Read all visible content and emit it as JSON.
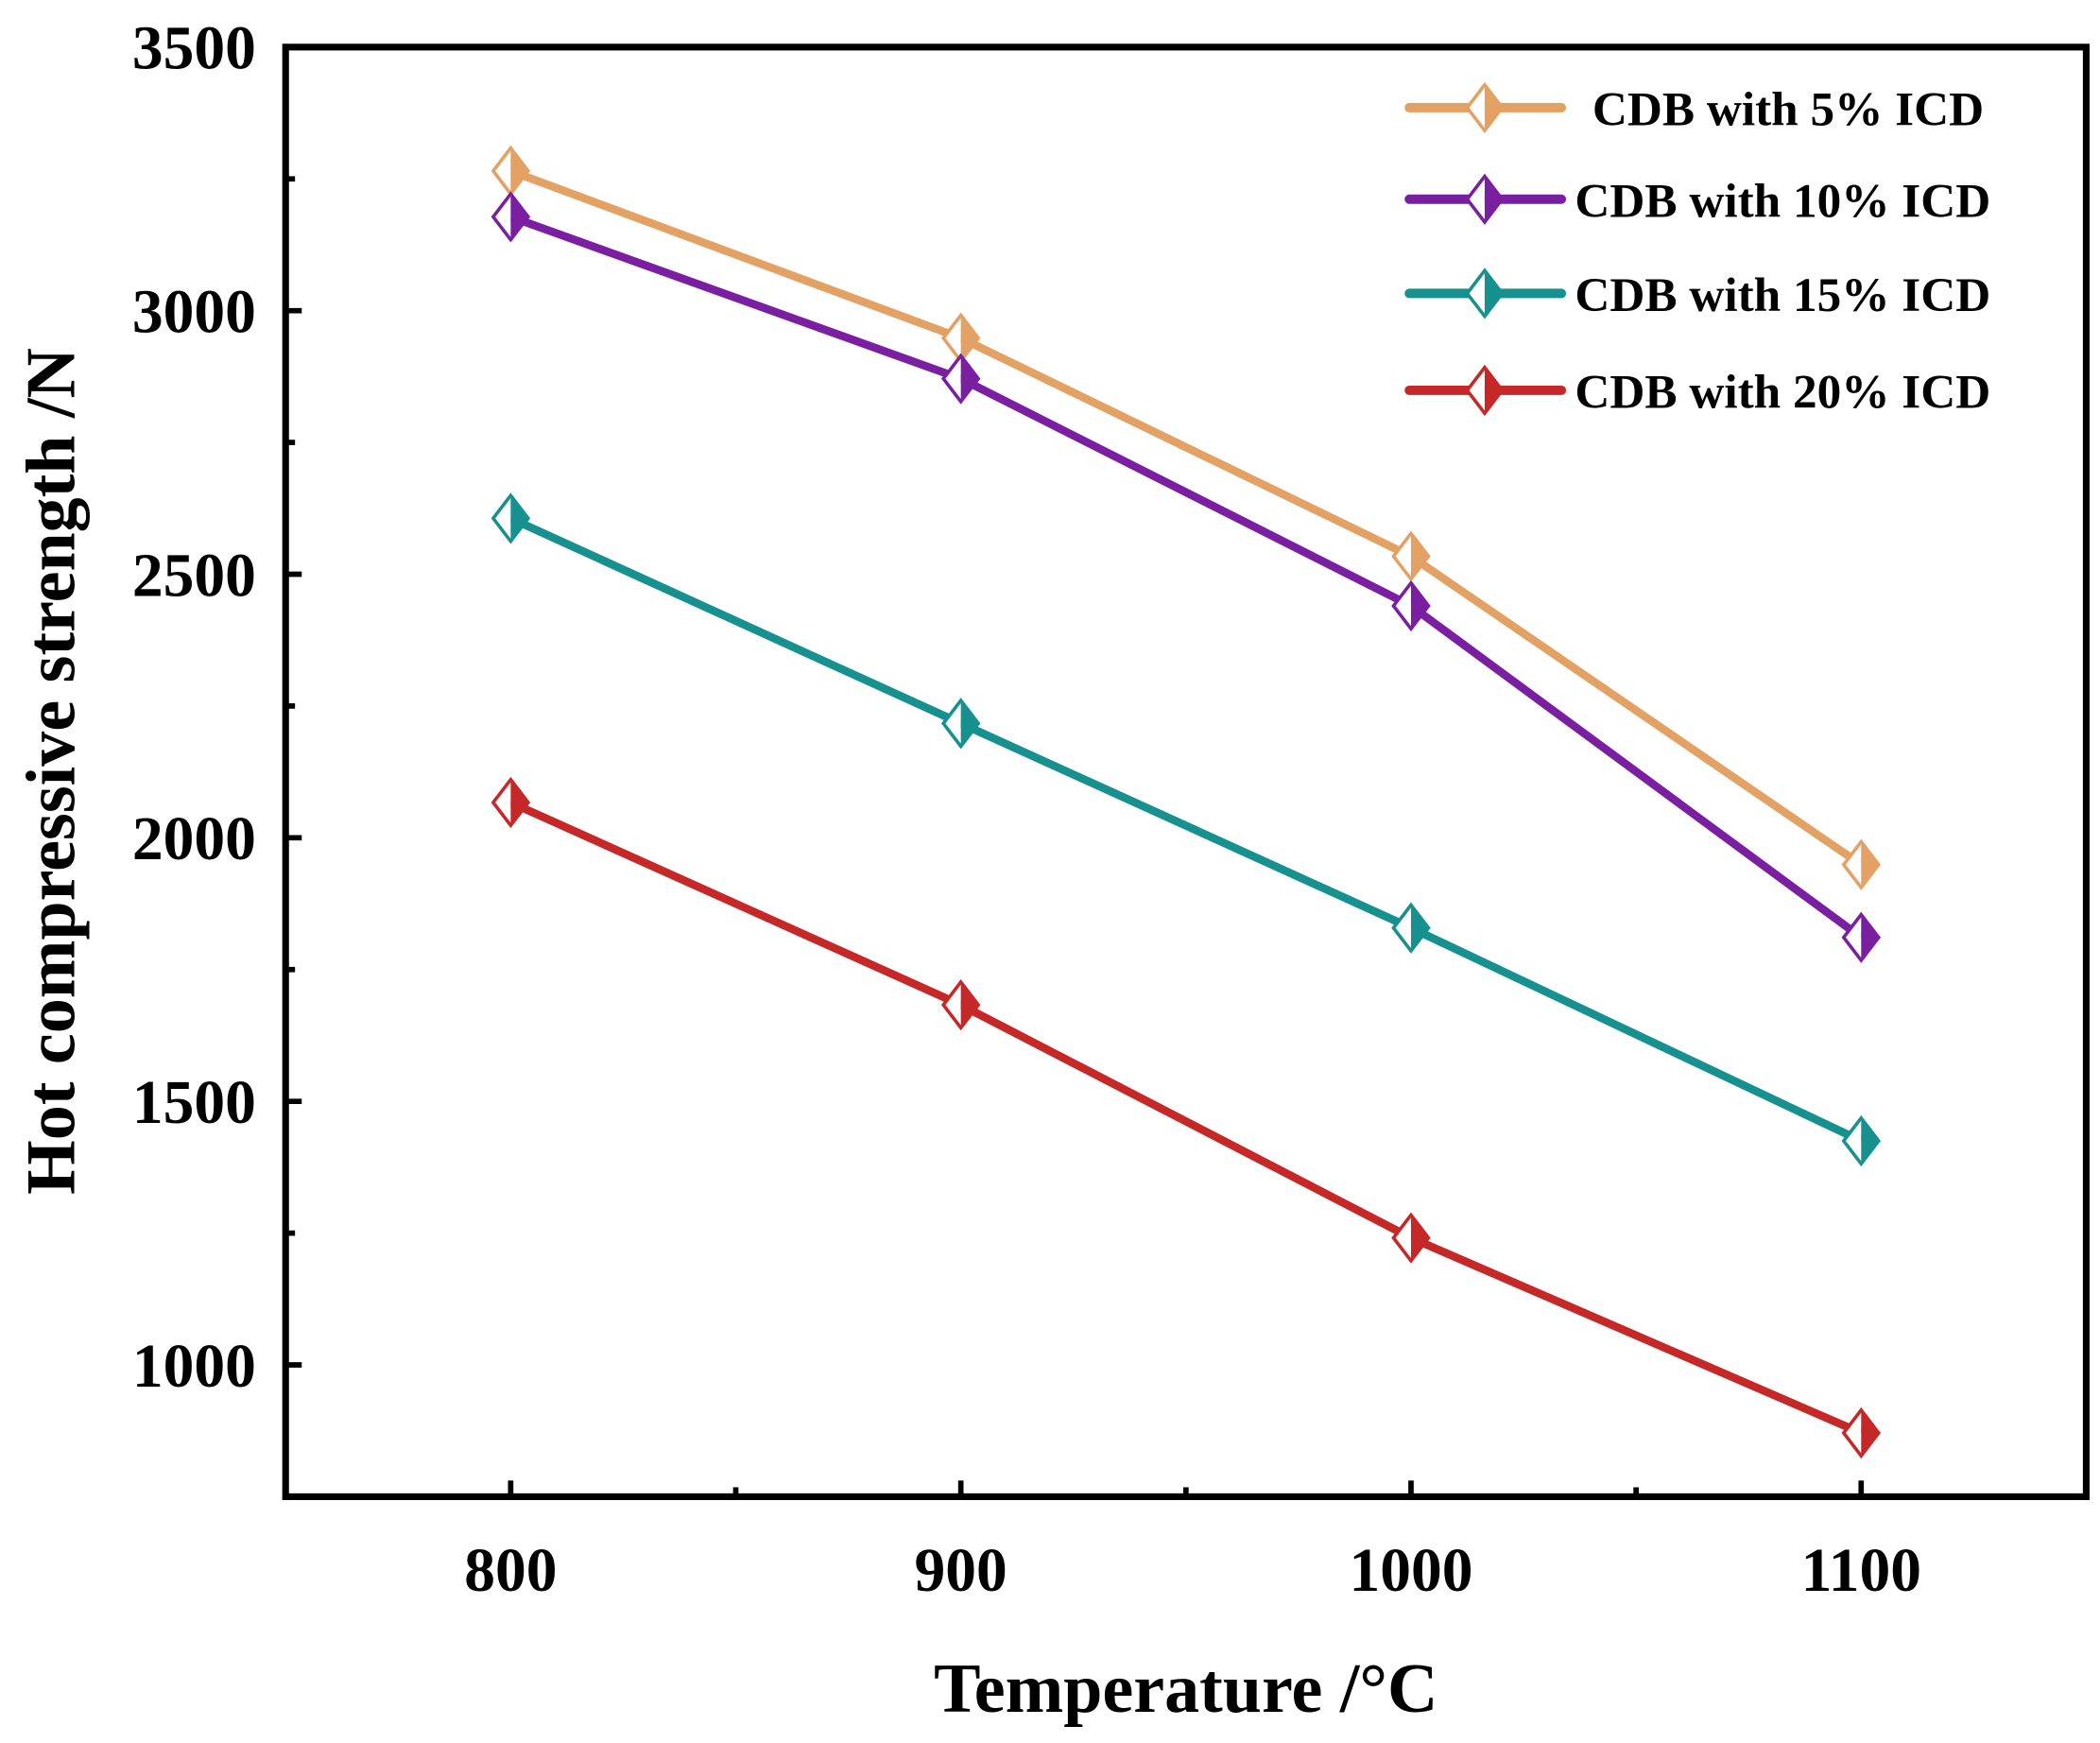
{
  "chart_data": {
    "type": "line",
    "title": "",
    "xlabel": "Temperature /°C",
    "ylabel": "Hot compressive strength /N",
    "xlim": [
      750,
      1150
    ],
    "ylim": [
      750,
      3500
    ],
    "x": [
      800,
      900,
      1000,
      1100
    ],
    "xticks": [
      800,
      900,
      1000,
      1100
    ],
    "xminor": [
      850,
      950,
      1050
    ],
    "yticks": [
      1000,
      1500,
      2000,
      2500,
      3000,
      3500
    ],
    "yminor": [
      1250,
      1750,
      2250,
      2750,
      3250
    ],
    "grid": false,
    "legend_position": "top-right",
    "marker": "half-filled diamond",
    "series": [
      {
        "name": "CDB with 5% ICD",
        "color": "#E3A163",
        "values": [
          3265,
          2948,
          2534,
          1949
        ]
      },
      {
        "name": "CDB with 10% ICD",
        "color": "#7B1FA2",
        "values": [
          3178,
          2871,
          2440,
          1811
        ]
      },
      {
        "name": "CDB with 15% ICD",
        "color": "#17918F",
        "values": [
          2606,
          2217,
          1829,
          1425
        ]
      },
      {
        "name": "CDB with 20% ICD",
        "color": "#C62828",
        "values": [
          2067,
          1683,
          1241,
          871
        ]
      }
    ]
  }
}
